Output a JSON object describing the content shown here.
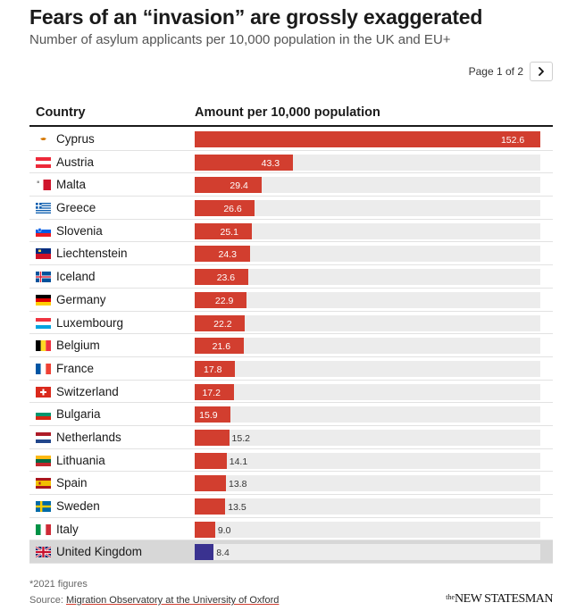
{
  "title": "Fears of an “invasion” are grossly exaggerated",
  "subtitle": "Number of asylum applicants per 10,000 population in the UK and EU+",
  "pager": {
    "label": "Page 1 of 2",
    "next_icon": "chevron-right-icon"
  },
  "colors": {
    "bar": "#d23e2f",
    "bar_highlight": "#3a3290",
    "track": "#ececec",
    "highlight_row": "#d7d7d7"
  },
  "chart_data": {
    "type": "bar",
    "orientation": "horizontal",
    "columns": [
      "Country",
      "Amount per 10,000 population"
    ],
    "xlim": [
      0,
      152.6
    ],
    "highlight": "United Kingdom",
    "categories": [
      "Cyprus",
      "Austria",
      "Malta",
      "Greece",
      "Slovenia",
      "Liechtenstein",
      "Iceland",
      "Germany",
      "Luxembourg",
      "Belgium",
      "France",
      "Switzerland",
      "Bulgaria",
      "Netherlands",
      "Lithuania",
      "Spain",
      "Sweden",
      "Italy",
      "United Kingdom"
    ],
    "values": [
      152.6,
      43.3,
      29.4,
      26.6,
      25.1,
      24.3,
      23.6,
      22.9,
      22.2,
      21.6,
      17.8,
      17.2,
      15.9,
      15.2,
      14.1,
      13.8,
      13.5,
      9.0,
      8.4
    ],
    "value_labels": [
      "152.6",
      "43.3",
      "29.4",
      "26.6",
      "25.1",
      "24.3",
      "23.6",
      "22.9",
      "22.2",
      "21.6",
      "17.8",
      "17.2",
      "15.9",
      "15.2",
      "14.1",
      "13.8",
      "13.5",
      "9.0",
      "8.4"
    ],
    "flags": [
      "cy",
      "at",
      "mt",
      "gr",
      "si",
      "li",
      "is",
      "de",
      "lu",
      "be",
      "fr",
      "ch",
      "bg",
      "nl",
      "lt",
      "es",
      "se",
      "it",
      "gb"
    ]
  },
  "footnote": "*2021 figures",
  "source": {
    "prefix": "Source: ",
    "link": "Migration Observatory at the University of Oxford"
  },
  "logo": {
    "small": "the",
    "main": "NEW STATESMAN"
  }
}
